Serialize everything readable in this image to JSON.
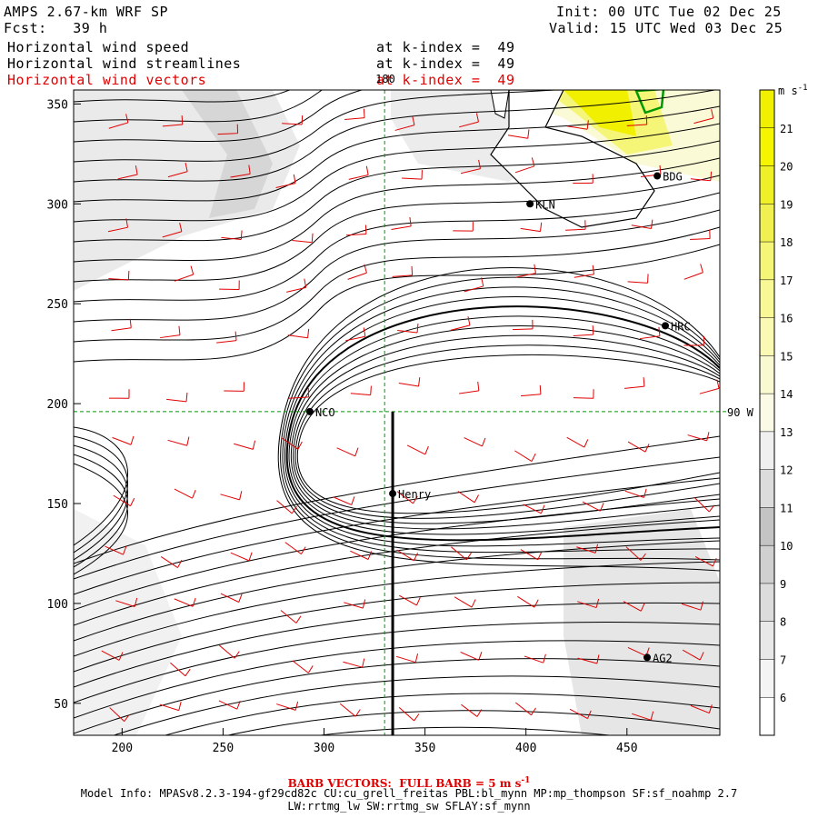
{
  "header": {
    "model": "AMPS 2.67-km WRF SP",
    "fcst": "Fcst:   39 h",
    "init": "Init: 00 UTC Tue 02 Dec 25",
    "valid": "Valid: 15 UTC Wed 03 Dec 25",
    "fields": [
      {
        "name": "Horizontal wind speed",
        "level": "at k-index =  49"
      },
      {
        "name": "Horizontal wind streamlines",
        "level": "at k-index =  49"
      },
      {
        "name": "Horizontal wind vectors",
        "level": "at k-index =  49"
      }
    ]
  },
  "chart_data": {
    "type": "heatmap",
    "xlim": [
      176,
      496
    ],
    "ylim": [
      34,
      357
    ],
    "x_ticks": [
      200,
      250,
      300,
      350,
      400,
      450
    ],
    "y_ticks": [
      50,
      100,
      150,
      200,
      250,
      300,
      350
    ],
    "reference_lines": {
      "x": 330,
      "x_label": "180",
      "y": 196,
      "y_label": "90 W"
    },
    "cross_section": {
      "x": 334,
      "y_from": 34,
      "y_to": 196
    },
    "stations": [
      {
        "name": "KLN",
        "x": 402,
        "y": 300
      },
      {
        "name": "BDG",
        "x": 465,
        "y": 314
      },
      {
        "name": "HRC",
        "x": 469,
        "y": 239
      },
      {
        "name": "NCO",
        "x": 293,
        "y": 196
      },
      {
        "name": "Henry",
        "x": 334,
        "y": 155
      },
      {
        "name": "AG2",
        "x": 460,
        "y": 73
      }
    ],
    "colorbar": {
      "unit": "m s",
      "unit_exp": "-1",
      "levels": [
        6,
        7,
        8,
        9,
        10,
        11,
        12,
        13,
        14,
        15,
        16,
        17,
        18,
        19,
        20,
        21
      ],
      "colors": [
        "#ffffff",
        "#f4f4f4",
        "#e8e8e8",
        "#dcdcdc",
        "#d0d0d0",
        "#c4c4c4",
        "#dcdcdc",
        "#f0f0f0",
        "#fafae6",
        "#fafad2",
        "#fafab4",
        "#f8f896",
        "#f5f578",
        "#f0f050",
        "#f0f028",
        "#f5f500",
        "#f0f000"
      ]
    },
    "colors": {
      "streamline": "#000000",
      "barb": "#e00000",
      "reference": "#009900",
      "coast": "#009900"
    }
  },
  "footer": {
    "barb_note": "BARB VECTORS:  FULL BARB = 5 m s",
    "barb_exp": "-1",
    "model_info": "Model Info: MPASv8.2.3-194-gf29cd82c CU:cu_grell_freitas PBL:bl_mynn MP:mp_thompson SF:sf_noahmp 2.7",
    "model_info2": "LW:rrtmg_lw SW:rrtmg_sw SFLAY:sf_mynn"
  }
}
